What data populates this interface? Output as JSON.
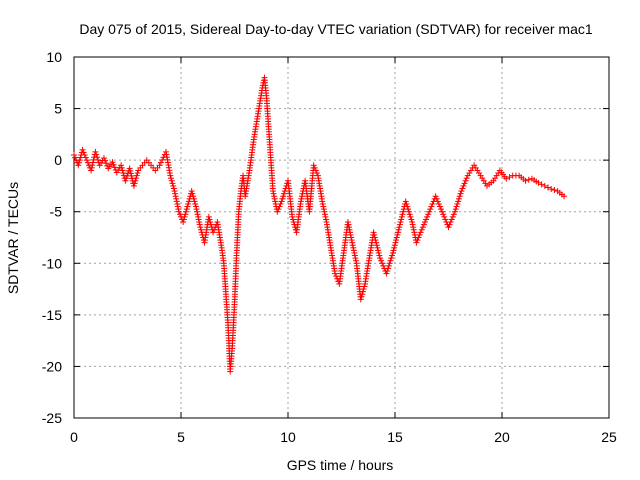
{
  "chart_data": {
    "type": "scatter",
    "title": "Day 075 of 2015, Sidereal Day-to-day VTEC variation (SDTVAR) for receiver mac1",
    "xlabel": "GPS time / hours",
    "ylabel": "SDTVAR / TECUs",
    "xlim": [
      0,
      25
    ],
    "ylim": [
      -25,
      10
    ],
    "x_ticks": [
      0,
      5,
      10,
      15,
      20,
      25
    ],
    "y_ticks": [
      -25,
      -20,
      -15,
      -10,
      -5,
      0,
      5,
      10
    ],
    "x_tick_labels": [
      "0",
      "5",
      "10",
      "15",
      "20",
      "25"
    ],
    "y_tick_labels": [
      "-25",
      "-20",
      "-15",
      "-10",
      "-5",
      "0",
      "5",
      "10"
    ],
    "grid": true,
    "marker": "plus",
    "color": "#ff0000",
    "series": [
      {
        "name": "SDTVAR",
        "points": [
          [
            0.0,
            0.5
          ],
          [
            0.2,
            -0.5
          ],
          [
            0.4,
            1.0
          ],
          [
            0.6,
            0.0
          ],
          [
            0.8,
            -1.0
          ],
          [
            1.0,
            0.8
          ],
          [
            1.2,
            -0.5
          ],
          [
            1.4,
            0.2
          ],
          [
            1.6,
            -0.8
          ],
          [
            1.8,
            -0.2
          ],
          [
            2.0,
            -1.2
          ],
          [
            2.2,
            -0.5
          ],
          [
            2.4,
            -2.0
          ],
          [
            2.6,
            -0.8
          ],
          [
            2.8,
            -2.5
          ],
          [
            3.0,
            -1.0
          ],
          [
            3.2,
            -0.5
          ],
          [
            3.4,
            0.0
          ],
          [
            3.6,
            -0.5
          ],
          [
            3.8,
            -1.0
          ],
          [
            4.0,
            -0.5
          ],
          [
            4.3,
            0.8
          ],
          [
            4.5,
            -1.5
          ],
          [
            4.7,
            -3.0
          ],
          [
            4.9,
            -5.0
          ],
          [
            5.1,
            -6.0
          ],
          [
            5.3,
            -4.5
          ],
          [
            5.5,
            -3.0
          ],
          [
            5.7,
            -4.5
          ],
          [
            5.9,
            -6.5
          ],
          [
            6.1,
            -8.0
          ],
          [
            6.3,
            -5.5
          ],
          [
            6.5,
            -7.0
          ],
          [
            6.7,
            -6.0
          ],
          [
            6.9,
            -8.5
          ],
          [
            7.0,
            -10.0
          ],
          [
            7.1,
            -13.0
          ],
          [
            7.2,
            -16.0
          ],
          [
            7.3,
            -20.5
          ],
          [
            7.4,
            -18.0
          ],
          [
            7.5,
            -14.0
          ],
          [
            7.6,
            -9.0
          ],
          [
            7.7,
            -5.0
          ],
          [
            7.8,
            -3.0
          ],
          [
            7.9,
            -1.5
          ],
          [
            8.0,
            -3.5
          ],
          [
            8.2,
            -1.0
          ],
          [
            8.4,
            2.0
          ],
          [
            8.6,
            4.5
          ],
          [
            8.8,
            7.0
          ],
          [
            8.9,
            8.0
          ],
          [
            9.0,
            6.0
          ],
          [
            9.1,
            3.0
          ],
          [
            9.2,
            0.0
          ],
          [
            9.3,
            -3.0
          ],
          [
            9.5,
            -5.0
          ],
          [
            9.7,
            -4.0
          ],
          [
            10.0,
            -2.0
          ],
          [
            10.2,
            -5.5
          ],
          [
            10.4,
            -7.0
          ],
          [
            10.6,
            -4.0
          ],
          [
            10.8,
            -2.0
          ],
          [
            11.0,
            -5.0
          ],
          [
            11.2,
            -0.5
          ],
          [
            11.4,
            -1.5
          ],
          [
            11.6,
            -4.0
          ],
          [
            11.8,
            -6.0
          ],
          [
            12.0,
            -8.5
          ],
          [
            12.2,
            -11.0
          ],
          [
            12.4,
            -12.0
          ],
          [
            12.6,
            -9.0
          ],
          [
            12.8,
            -6.0
          ],
          [
            13.0,
            -8.0
          ],
          [
            13.2,
            -10.0
          ],
          [
            13.4,
            -13.5
          ],
          [
            13.6,
            -12.0
          ],
          [
            13.8,
            -9.5
          ],
          [
            14.0,
            -7.0
          ],
          [
            14.3,
            -9.5
          ],
          [
            14.6,
            -11.0
          ],
          [
            14.9,
            -9.0
          ],
          [
            15.2,
            -6.5
          ],
          [
            15.5,
            -4.0
          ],
          [
            15.8,
            -6.0
          ],
          [
            16.0,
            -8.0
          ],
          [
            16.3,
            -6.5
          ],
          [
            16.6,
            -5.0
          ],
          [
            16.9,
            -3.5
          ],
          [
            17.2,
            -5.0
          ],
          [
            17.5,
            -6.5
          ],
          [
            17.8,
            -5.0
          ],
          [
            18.1,
            -3.0
          ],
          [
            18.4,
            -1.5
          ],
          [
            18.7,
            -0.5
          ],
          [
            19.0,
            -1.5
          ],
          [
            19.3,
            -2.5
          ],
          [
            19.6,
            -2.0
          ],
          [
            19.9,
            -1.0
          ],
          [
            20.2,
            -1.8
          ],
          [
            20.5,
            -1.5
          ],
          [
            20.8,
            -1.5
          ],
          [
            21.1,
            -2.0
          ],
          [
            21.4,
            -1.8
          ],
          [
            21.7,
            -2.2
          ],
          [
            22.0,
            -2.5
          ],
          [
            22.3,
            -2.8
          ],
          [
            22.6,
            -3.0
          ],
          [
            22.9,
            -3.5
          ]
        ]
      }
    ]
  }
}
